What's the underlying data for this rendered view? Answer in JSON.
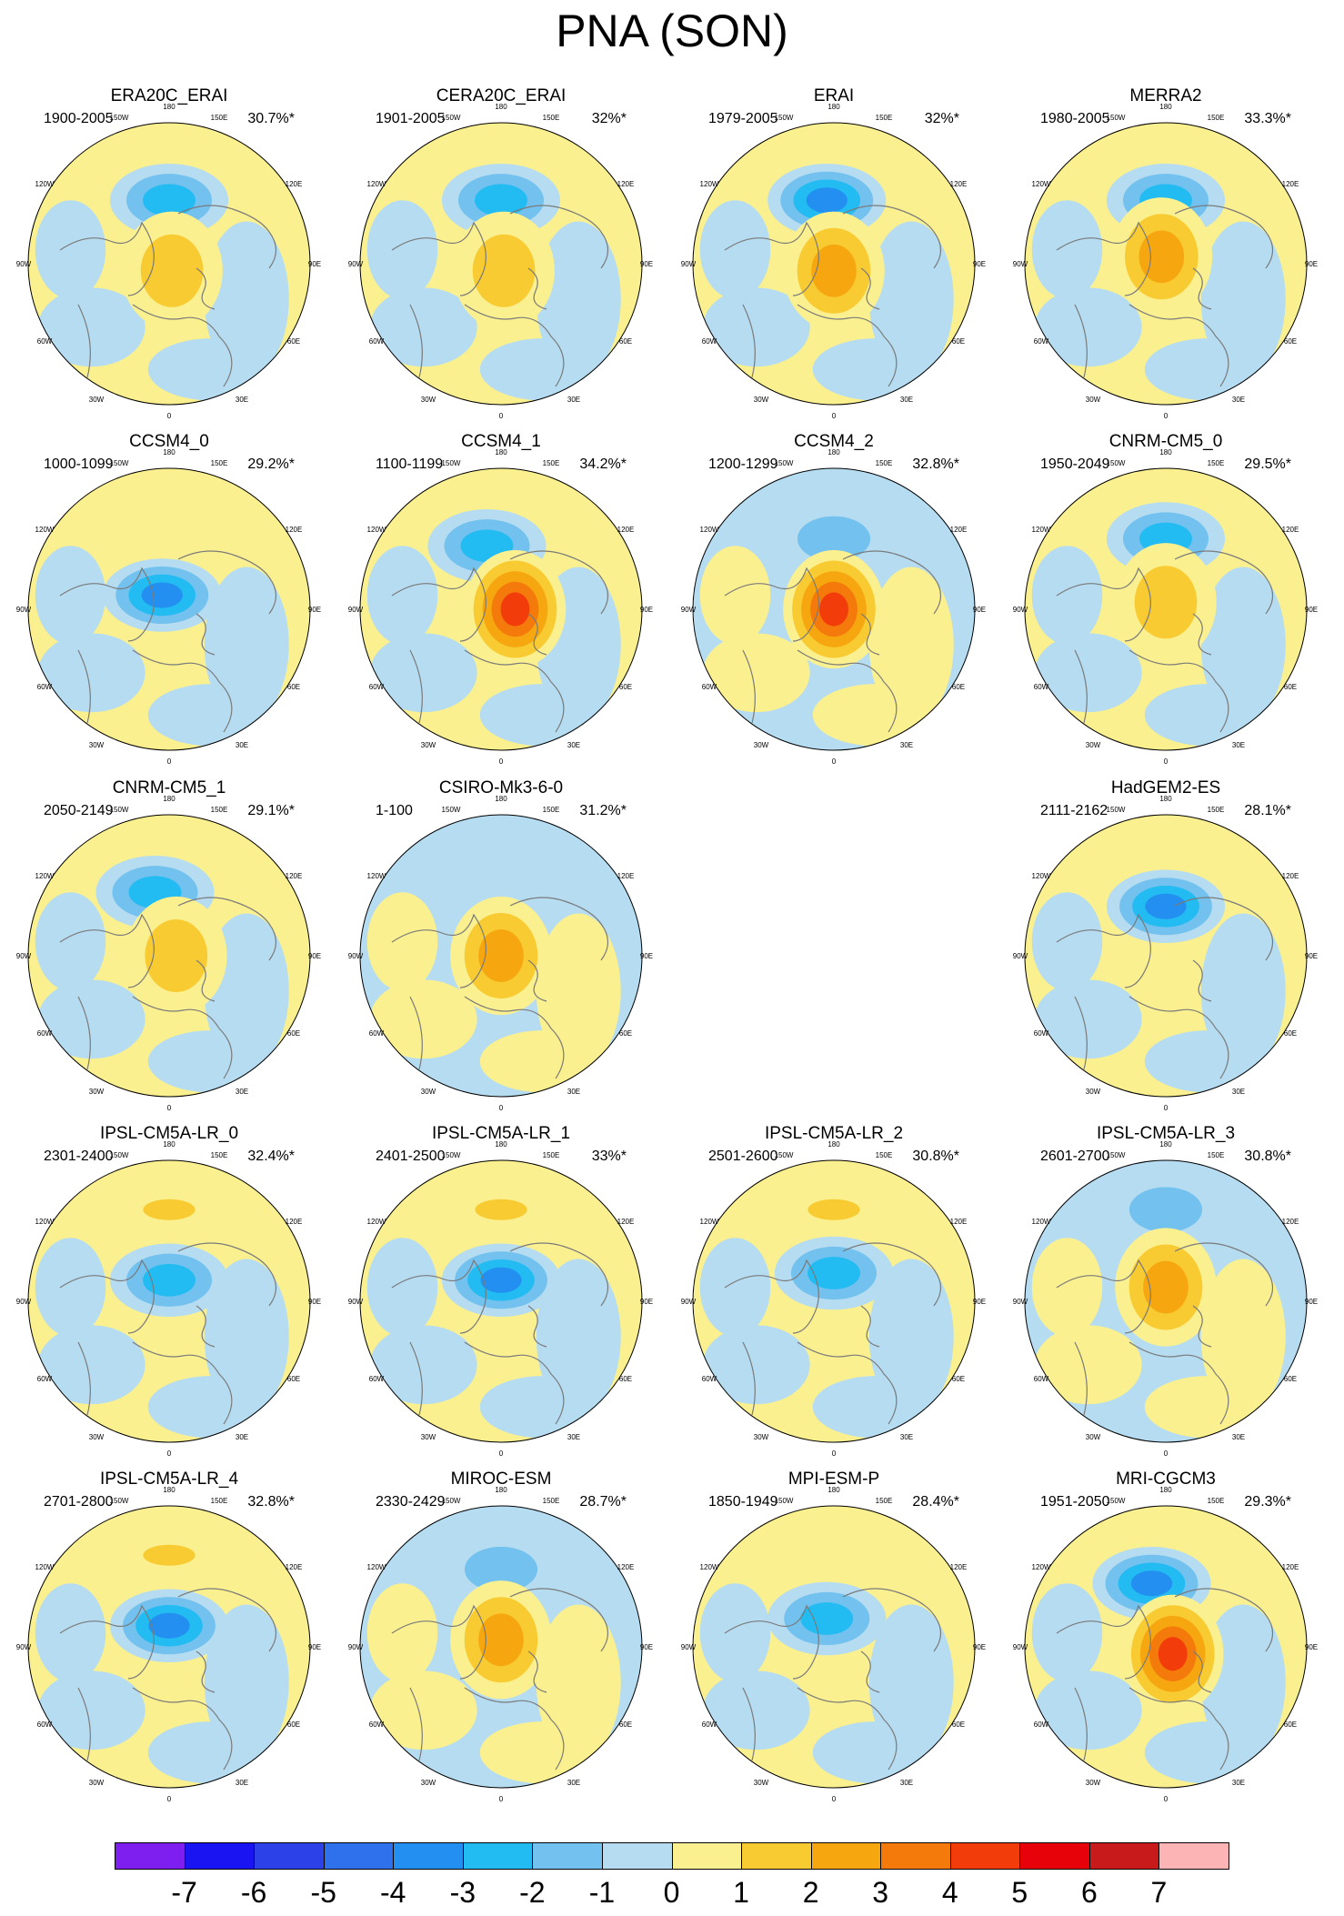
{
  "title": "PNA (SON)",
  "longitude_labels": [
    "180",
    "150W",
    "150E",
    "120W",
    "120E",
    "90W",
    "90E",
    "60W",
    "60E",
    "30W",
    "30E",
    "0"
  ],
  "colors": {
    "pos": [
      "#fbf08f",
      "#f9cb32",
      "#f6a710",
      "#f47b0b",
      "#f23d0b",
      "#e60208",
      "#c8191b",
      "#fcb4b4"
    ],
    "neg": [
      "#b5dcf1",
      "#72c1ee",
      "#22bbf2",
      "#238ff0",
      "#2f70ed",
      "#2c41e8",
      "#1b14f2",
      "#7e1ff0"
    ],
    "coast": "#7a7a7a"
  },
  "panels": [
    {
      "name": "ERA20C_ERAI",
      "period": "1900-2005",
      "variance": "30.7%*",
      "pattern": {
        "a": 3,
        "b": 2,
        "c": 0,
        "x": [
          0,
          0.02
        ],
        "y": [
          -0.45,
          0.05
        ],
        "t": [
          1.8,
          1.5
        ]
      }
    },
    {
      "name": "CERA20C_ERAI",
      "period": "1901-2005",
      "variance": "32%*",
      "pattern": {
        "a": 3,
        "b": 2,
        "c": 0,
        "x": [
          0,
          0.02
        ],
        "y": [
          -0.45,
          0.05
        ],
        "t": [
          1.6,
          1.3
        ]
      }
    },
    {
      "name": "ERAI",
      "period": "1979-2005",
      "variance": "32%*",
      "pattern": {
        "a": 4,
        "b": 3,
        "c": 0,
        "x": [
          -0.05,
          0
        ],
        "y": [
          -0.45,
          0.05
        ],
        "t": [
          1.7,
          1.6
        ]
      }
    },
    {
      "name": "MERRA2",
      "period": "1980-2005",
      "variance": "33.3%*",
      "pattern": {
        "a": 3,
        "b": 3,
        "c": 0,
        "x": [
          0,
          -0.03
        ],
        "y": [
          -0.45,
          -0.05
        ],
        "t": [
          1.6,
          1.6
        ]
      }
    },
    {
      "name": "CCSM4_0",
      "period": "1000-1099",
      "variance": "29.2%*",
      "pattern": {
        "a": 4,
        "b": 0,
        "c": 0,
        "x": [
          -0.05,
          0
        ],
        "y": [
          -0.1,
          0
        ],
        "t": [
          1.5,
          1.0
        ]
      }
    },
    {
      "name": "CCSM4_1",
      "period": "1100-1199",
      "variance": "34.2%*",
      "pattern": {
        "a": 3,
        "b": 5,
        "c": 0,
        "x": [
          -0.1,
          0.1
        ],
        "y": [
          -0.45,
          0
        ],
        "t": [
          1.6,
          1.9
        ]
      }
    },
    {
      "name": "CCSM4_2",
      "period": "1200-1299",
      "variance": "32.8%*",
      "pattern": {
        "a": 2,
        "b": 5,
        "c": 0,
        "x": [
          0,
          0
        ],
        "y": [
          -0.5,
          0
        ],
        "t": [
          1.7,
          1.8
        ]
      }
    },
    {
      "name": "CNRM-CM5_0",
      "period": "1950-2049",
      "variance": "29.5%*",
      "pattern": {
        "a": 3,
        "b": 2,
        "c": 0,
        "x": [
          0,
          0
        ],
        "y": [
          -0.5,
          -0.05
        ],
        "t": [
          1.6,
          1.7
        ]
      }
    },
    {
      "name": "CNRM-CM5_1",
      "period": "2050-2149",
      "variance": "29.1%*",
      "pattern": {
        "a": 3,
        "b": 2,
        "c": 0,
        "x": [
          -0.1,
          0.05
        ],
        "y": [
          -0.45,
          0
        ],
        "t": [
          1.5,
          1.2
        ]
      }
    },
    {
      "name": "CSIRO-Mk3-6-0",
      "period": "1-100",
      "variance": "31.2%*",
      "pattern": {
        "a": 1,
        "b": 3,
        "c": 0,
        "x": [
          0.05,
          0
        ],
        "y": [
          -0.55,
          0
        ],
        "t": [
          1.4,
          1.7
        ]
      }
    },
    {
      "name": "HadGEM2-ES",
      "period": "2111-2162",
      "variance": "28.1%*",
      "pattern": {
        "a": 4,
        "b": 0,
        "c": 0,
        "x": [
          0,
          0
        ],
        "y": [
          -0.35,
          0
        ],
        "t": [
          1.6,
          1.0
        ]
      }
    },
    {
      "name": "IPSL-CM5A-LR_0",
      "period": "2301-2400",
      "variance": "32.4%*",
      "pattern": {
        "a": 3,
        "b": 0,
        "c": 2,
        "x": [
          0,
          0
        ],
        "y": [
          -0.15,
          -0.65
        ],
        "t": [
          1.8,
          1.3
        ]
      }
    },
    {
      "name": "IPSL-CM5A-LR_1",
      "period": "2401-2500",
      "variance": "33%*",
      "pattern": {
        "a": 4,
        "b": 0,
        "c": 2,
        "x": [
          0,
          0
        ],
        "y": [
          -0.15,
          -0.65
        ],
        "t": [
          1.8,
          1.3
        ]
      }
    },
    {
      "name": "IPSL-CM5A-LR_2",
      "period": "2501-2600",
      "variance": "30.8%*",
      "pattern": {
        "a": 3,
        "b": 0,
        "c": 2,
        "x": [
          0,
          0
        ],
        "y": [
          -0.2,
          -0.65
        ],
        "t": [
          1.7,
          1.3
        ]
      }
    },
    {
      "name": "IPSL-CM5A-LR_3",
      "period": "2601-2700",
      "variance": "30.8%*",
      "pattern": {
        "a": 2,
        "b": 3,
        "c": 0,
        "x": [
          0,
          0
        ],
        "y": [
          -0.65,
          -0.1
        ],
        "t": [
          1.3,
          1.8
        ]
      }
    },
    {
      "name": "IPSL-CM5A-LR_4",
      "period": "2701-2800",
      "variance": "32.8%*",
      "pattern": {
        "a": 4,
        "b": 0,
        "c": 2,
        "x": [
          0,
          0
        ],
        "y": [
          -0.15,
          -0.65
        ],
        "t": [
          1.8,
          1.3
        ]
      }
    },
    {
      "name": "MIROC-ESM",
      "period": "2330-2429",
      "variance": "28.7%*",
      "pattern": {
        "a": 2,
        "b": 3,
        "c": 0,
        "x": [
          0,
          0
        ],
        "y": [
          -0.55,
          -0.05
        ],
        "t": [
          1.3,
          1.7
        ]
      }
    },
    {
      "name": "MPI-ESM-P",
      "period": "1850-1949",
      "variance": "28.4%*",
      "pattern": {
        "a": 3,
        "b": 0,
        "c": 0,
        "x": [
          -0.05,
          0
        ],
        "y": [
          -0.2,
          0
        ],
        "t": [
          1.8,
          1.0
        ]
      }
    },
    {
      "name": "MRI-CGCM3",
      "period": "1951-2050",
      "variance": "29.3%*",
      "pattern": {
        "a": 4,
        "b": 5,
        "c": 0,
        "x": [
          -0.1,
          0.05
        ],
        "y": [
          -0.45,
          0.05
        ],
        "t": [
          1.6,
          1.5
        ]
      }
    }
  ],
  "colorbar": {
    "labels": [
      "-7",
      "-6",
      "-5",
      "-4",
      "-3",
      "-2",
      "-1",
      "0",
      "1",
      "2",
      "3",
      "4",
      "5",
      "6",
      "7"
    ],
    "colors": [
      "#7e1ff0",
      "#1b14f2",
      "#2c41e8",
      "#2f70ed",
      "#238ff0",
      "#22bbf2",
      "#72c1ee",
      "#b5dcf1",
      "#fbf08f",
      "#f9cb32",
      "#f6a710",
      "#f47b0b",
      "#f23d0b",
      "#e60208",
      "#c8191b",
      "#fcb4b4"
    ]
  }
}
